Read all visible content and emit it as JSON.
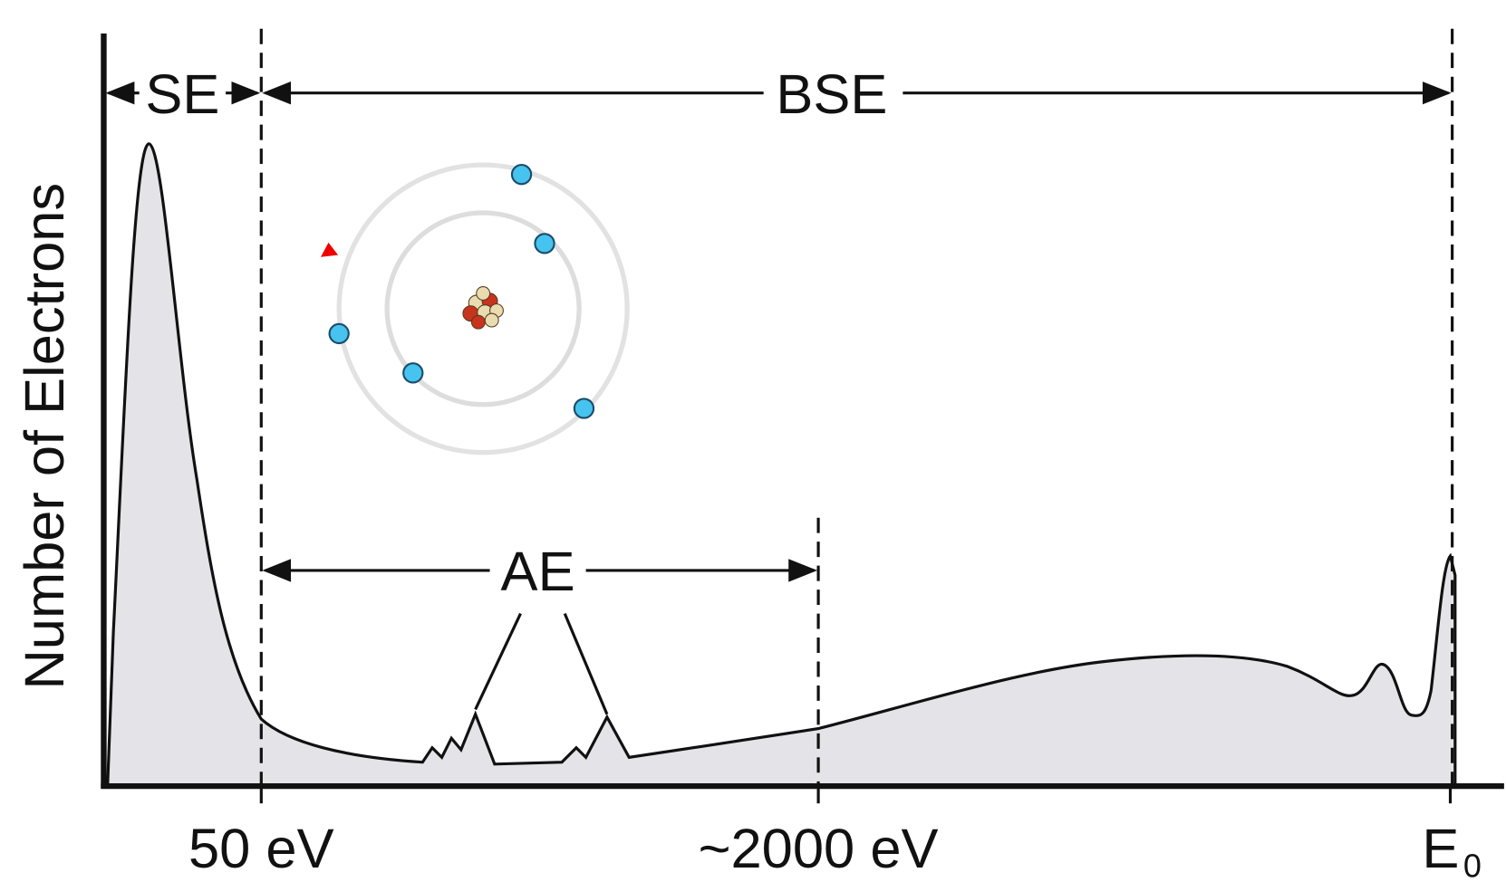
{
  "y_axis_label": "Number of Electrons",
  "regions": [
    {
      "label": "SE"
    },
    {
      "label": "BSE"
    },
    {
      "label": "AE"
    }
  ],
  "x_tick_labels": [
    "50 eV",
    "~2000 eV"
  ],
  "end_label": {
    "base": "E",
    "subscript": "0"
  }
}
